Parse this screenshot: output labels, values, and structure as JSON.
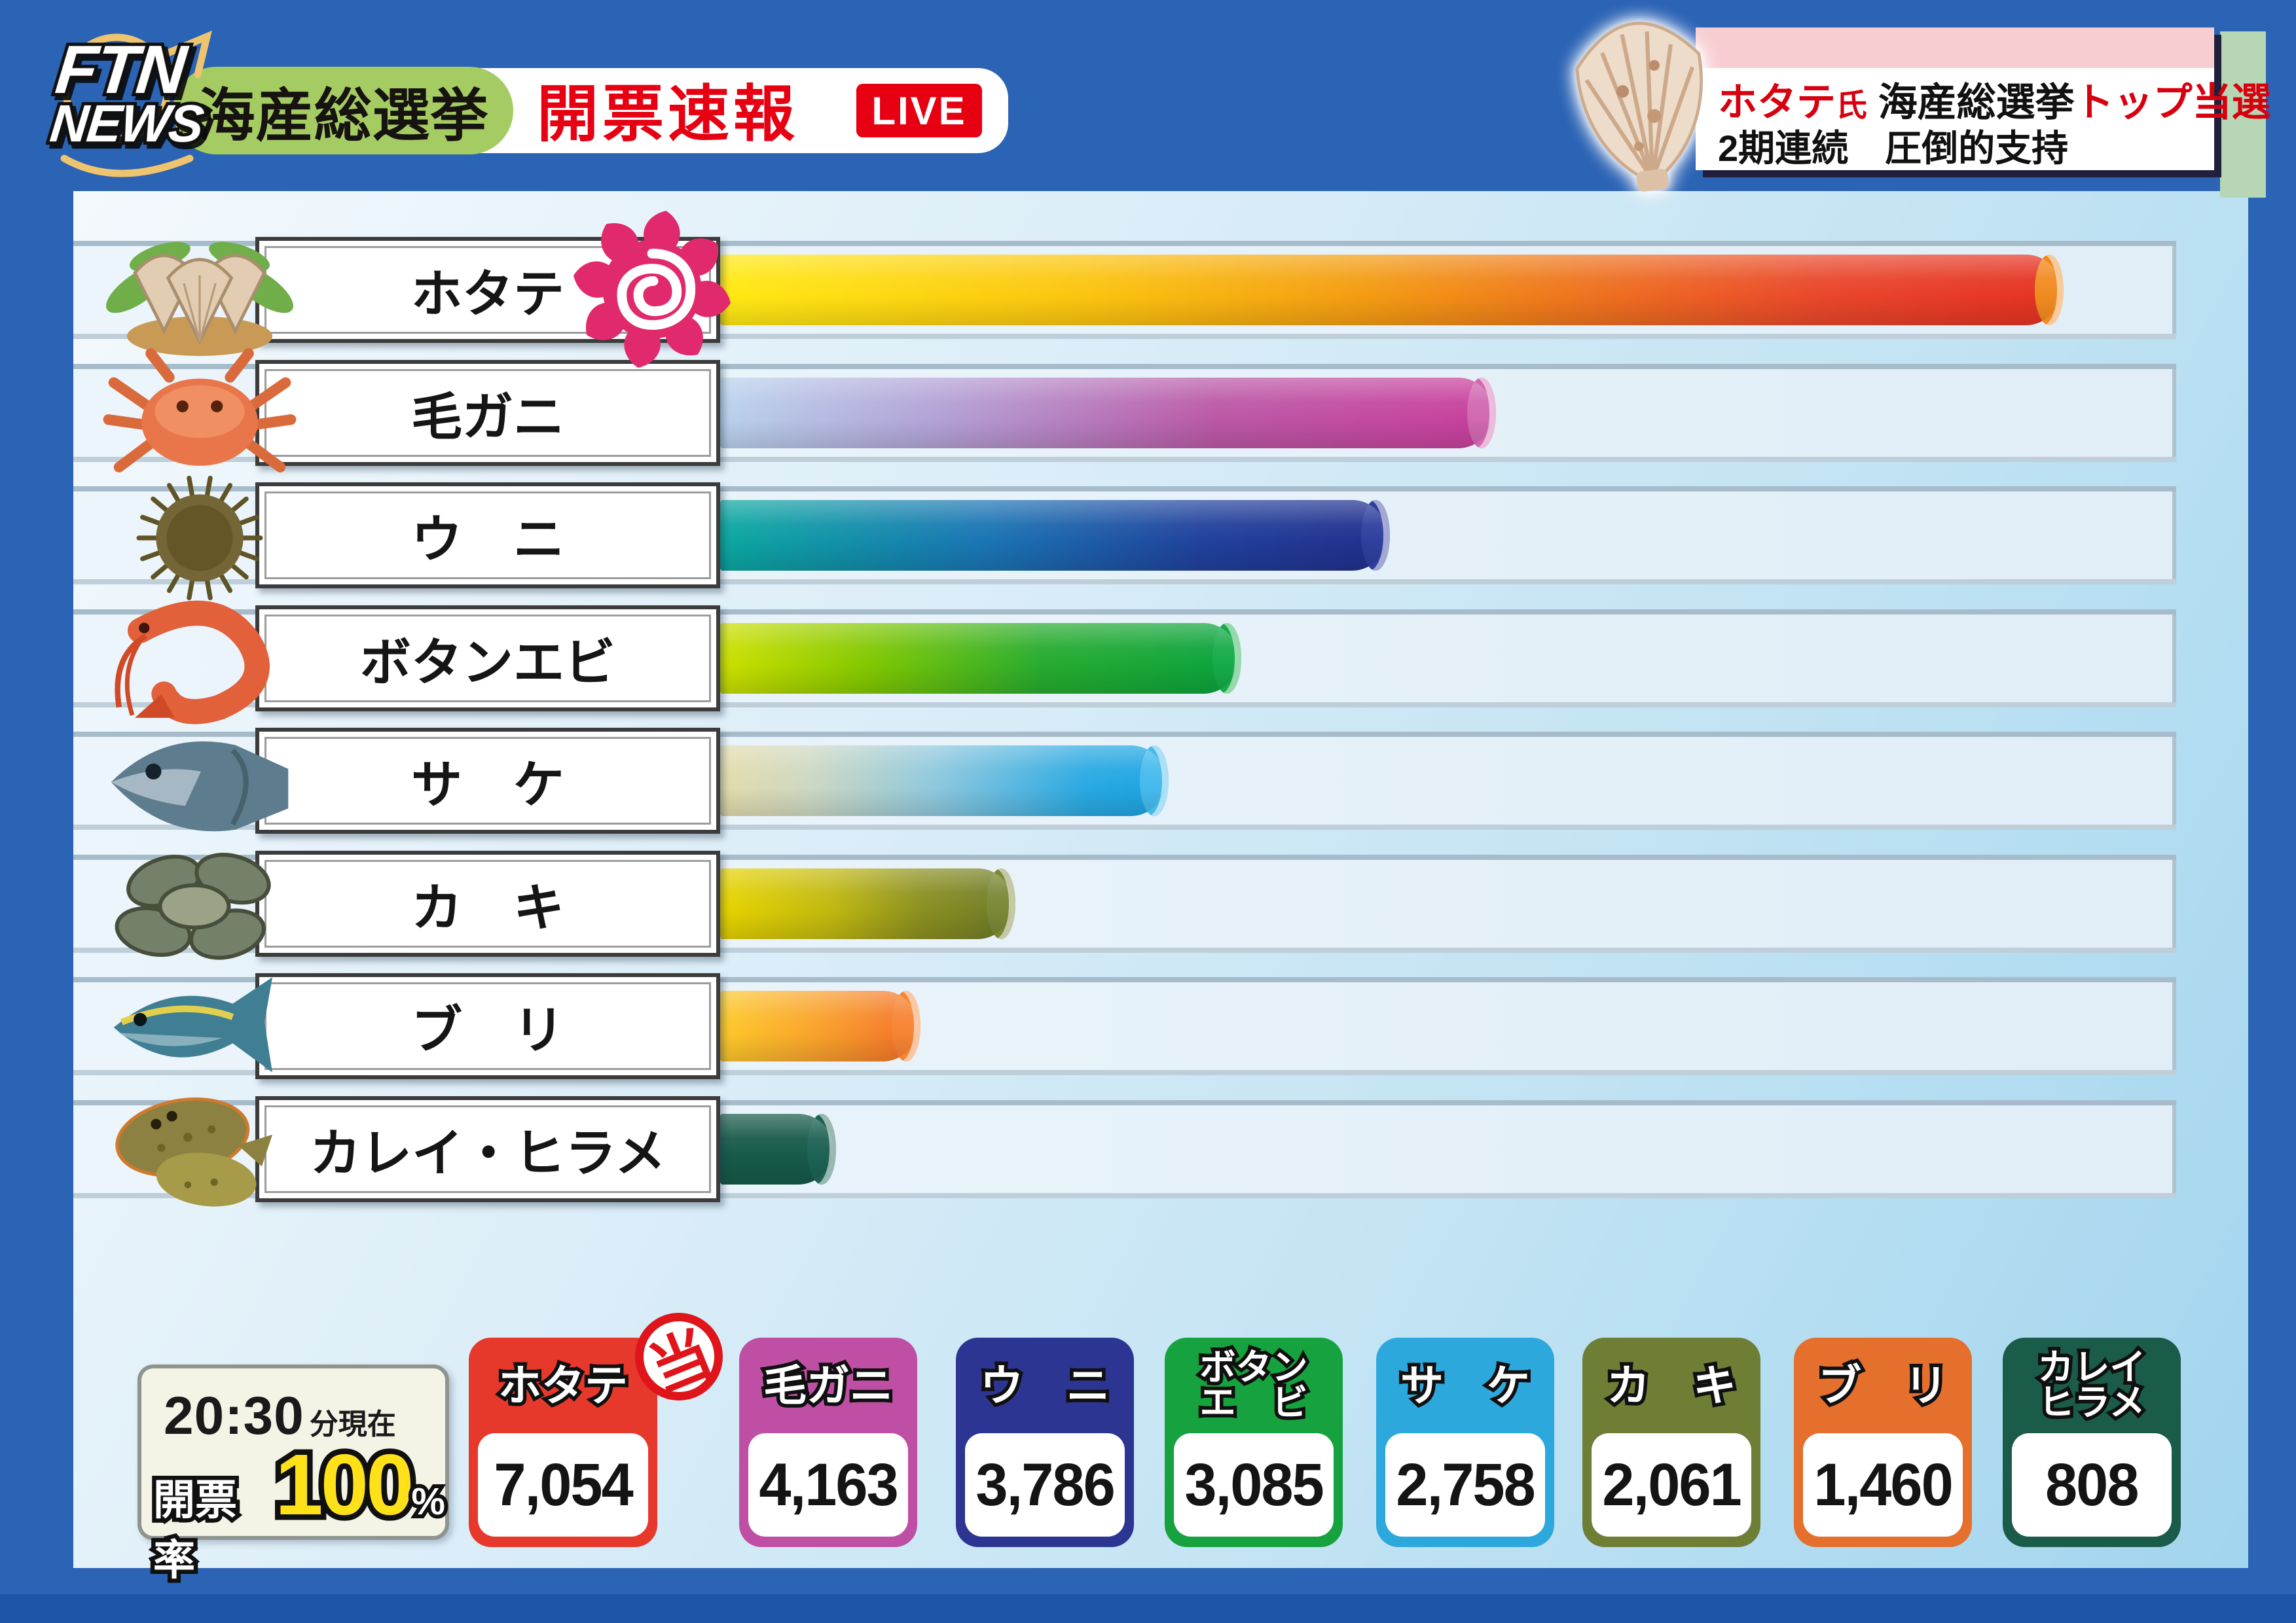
{
  "header": {
    "logo_line1": "FTN",
    "logo_line2": "NEWS",
    "program_badge": "海産総選挙",
    "title": "開票速報",
    "live_label": "LIVE"
  },
  "ticker": {
    "line1_red1": "ホタテ",
    "line1_red1_suffix": "氏",
    "line1_black": "海産総選挙",
    "line1_red2": "トップ当選",
    "line2": "2期連続　圧倒的支持"
  },
  "status": {
    "time": "20:30",
    "time_suffix": "分現在",
    "rate_label": "開票率",
    "rate_value": "100",
    "rate_unit": "%"
  },
  "chart_data": {
    "type": "bar",
    "title": "海産総選挙 開票速報",
    "orientation": "horizontal",
    "unit": "votes",
    "categories": [
      "ホタテ",
      "毛ガニ",
      "ウニ",
      "ボタンエビ",
      "サケ",
      "カキ",
      "ブリ",
      "カレイ・ヒラメ"
    ],
    "values": [
      7054,
      4163,
      3786,
      3085,
      2758,
      2061,
      1460,
      808
    ],
    "winner_stamp": "当",
    "items": [
      {
        "name": "ホタテ",
        "row_label": "ホタテ",
        "box_name_lines": [
          "ホタテ"
        ],
        "votes": 7054,
        "votes_label": "7,054",
        "bar_fraction": 0.921,
        "winner": true,
        "photo": "scallops-basket",
        "box_color": "#e6382b",
        "bar_gradient": [
          "#ffe913 0%",
          "#fbc30f 28%",
          "#f39c12 48%",
          "#e9472b 82%",
          "#e53122 100%"
        ],
        "cap_color": "#f08a20"
      },
      {
        "name": "毛ガニ",
        "row_label": "毛ガニ",
        "box_name_lines": [
          "毛ガニ"
        ],
        "votes": 4163,
        "votes_label": "4,163",
        "bar_fraction": 0.531,
        "winner": false,
        "photo": "hairy-crab",
        "box_color": "#bf4fa4",
        "bar_gradient": [
          "#b9d2ec 0%",
          "#b2a2d6 28%",
          "#bb58a6 64%",
          "#c93f9c 100%"
        ],
        "cap_color": "#d168b0"
      },
      {
        "name": "ウニ",
        "row_label": "ウ　ニ",
        "box_name_lines": [
          "ウ　ニ"
        ],
        "votes": 3786,
        "votes_label": "3,786",
        "bar_fraction": 0.458,
        "winner": false,
        "photo": "sea-urchin",
        "box_color": "#2c3591",
        "bar_gradient": [
          "#0ba8a0 0%",
          "#1a74b4 40%",
          "#20419c 72%",
          "#212e8d 100%"
        ],
        "cap_color": "#2e3f9e"
      },
      {
        "name": "ボタンエビ",
        "row_label": "ボタンエビ",
        "box_name_lines": [
          "ボタン",
          "エ　ビ"
        ],
        "votes": 3085,
        "votes_label": "3,085",
        "bar_fraction": 0.356,
        "winner": false,
        "photo": "botan-shrimp",
        "box_color": "#16a23e",
        "bar_gradient": [
          "#cde000 0%",
          "#83c800 28%",
          "#27ab2f 62%",
          "#0aa33e 100%"
        ],
        "cap_color": "#16ab48"
      },
      {
        "name": "サケ",
        "row_label": "サ　ケ",
        "box_name_lines": [
          "サ　ケ"
        ],
        "votes": 2758,
        "votes_label": "2,758",
        "bar_fraction": 0.306,
        "winner": false,
        "photo": "salmon",
        "box_color": "#2da8dd",
        "bar_gradient": [
          "#e3dcab 0%",
          "#cdd8c2 20%",
          "#8fc8dd 48%",
          "#29a9e2 82%",
          "#1ba4e2 100%"
        ],
        "cap_color": "#46baed"
      },
      {
        "name": "カキ",
        "row_label": "カ　キ",
        "box_name_lines": [
          "カ　キ"
        ],
        "votes": 2061,
        "votes_label": "2,061",
        "bar_fraction": 0.201,
        "winner": false,
        "photo": "oysters",
        "box_color": "#6e7e35",
        "bar_gradient": [
          "#e8d400 0%",
          "#c0b810 38%",
          "#8c9020 68%",
          "#6c7a28 100%"
        ],
        "cap_color": "#7b8836"
      },
      {
        "name": "ブリ",
        "row_label": "ブ　リ",
        "box_name_lines": [
          "ブ　リ"
        ],
        "votes": 1460,
        "votes_label": "1,460",
        "bar_fraction": 0.136,
        "winner": false,
        "photo": "yellowtail",
        "box_color": "#e56f2c",
        "bar_gradient": [
          "#fdc92b 0%",
          "#f9a32b 48%",
          "#f4702a 100%"
        ],
        "cap_color": "#f68434"
      },
      {
        "name": "カレイ・ヒラメ",
        "row_label": "カレイ・ヒラメ",
        "box_name_lines": [
          "カレイ",
          "ヒラメ"
        ],
        "votes": 808,
        "votes_label": "808",
        "bar_fraction": 0.078,
        "winner": false,
        "photo": "flounder",
        "box_color": "#1a5c49",
        "bar_gradient": [
          "#175a4a 0%",
          "#175a4a 100%"
        ],
        "cap_color": "#1d6253"
      }
    ]
  },
  "colors": {
    "background_blue": "#2b63b5",
    "bottom_strip_blue": "#1d55a8",
    "accent_red": "#e60012",
    "program_badge_green": "#a5cc63",
    "ticker_pink": "#f8cdd2",
    "ticker_ribbon_green": "#b7d6b5",
    "rose_pink": "#e12a6d",
    "rate_yellow": "#ffe11a"
  }
}
